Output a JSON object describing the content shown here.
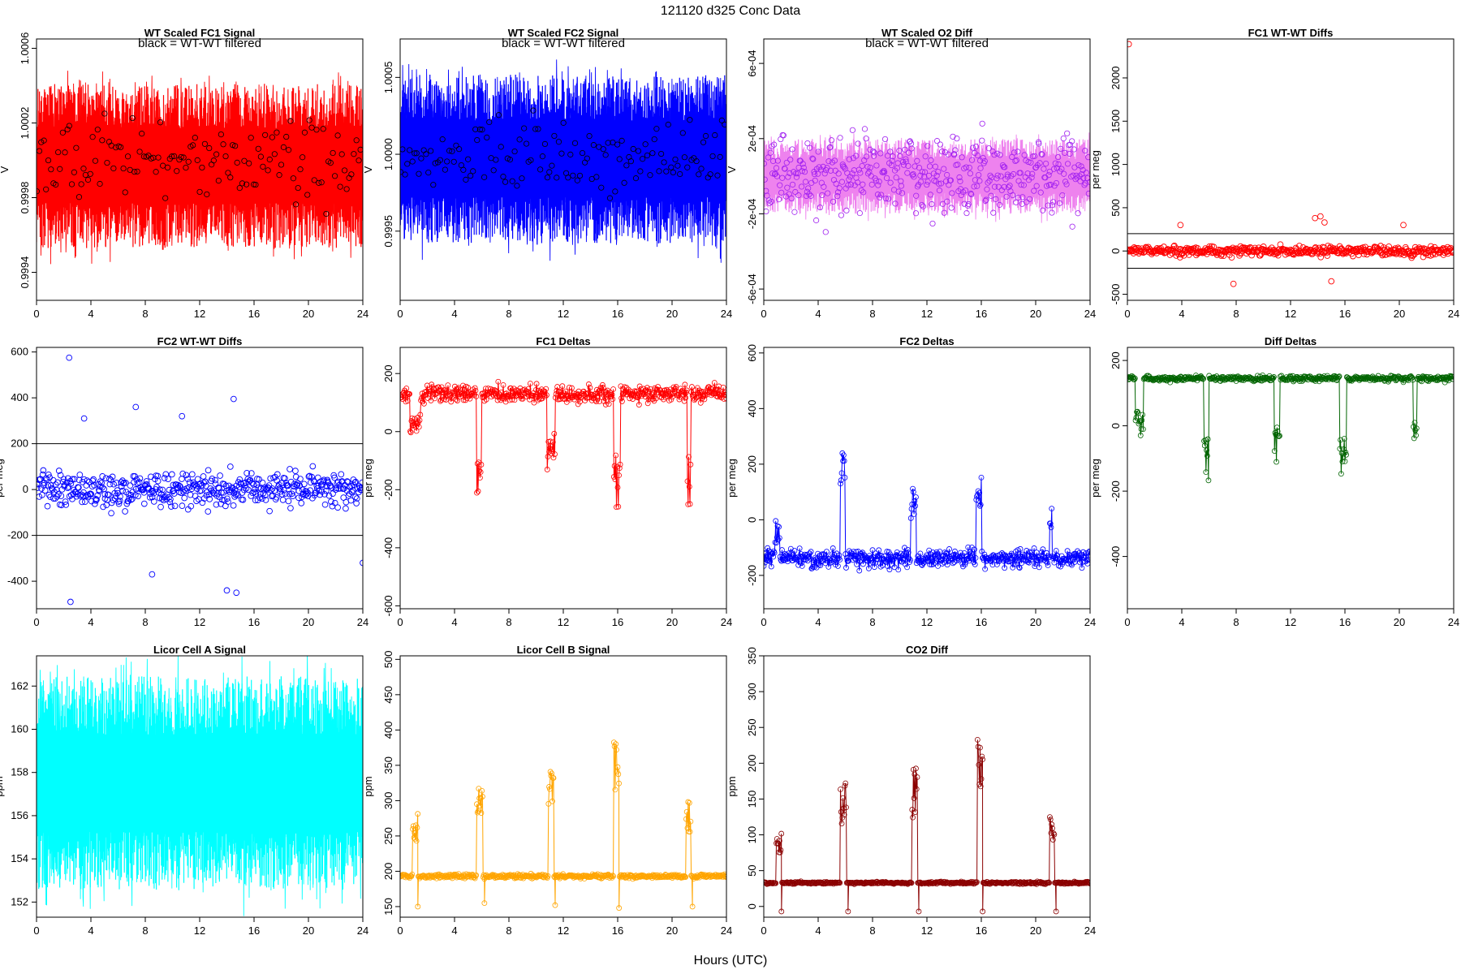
{
  "figure": {
    "title": "121120   d325   Conc Data",
    "xlabel": "Hours (UTC)"
  },
  "colors": {
    "red": "#ff0000",
    "blue": "#0000ff",
    "violet": "#ee82ee",
    "purple": "#a020f0",
    "darkgreen": "#006400",
    "cyan": "#00ffff",
    "orange": "#ffa500",
    "darkred": "#8b0000",
    "filtered": "#000000"
  },
  "chart_data": [
    {
      "id": "p1",
      "type": "line",
      "title": "WT Scaled FC1 Signal",
      "ylabel": "V",
      "note": "black = WT-WT filtered",
      "color": "red",
      "xlim": [
        0,
        24
      ],
      "xticks": [
        0,
        4,
        8,
        12,
        16,
        20,
        24
      ],
      "ylim": [
        0.99925,
        1.00065
      ],
      "yticks": [
        0.9994,
        0.9998,
        1.0002,
        1.0006
      ],
      "ytick_labels": [
        "0.9994",
        "0.9998",
        "1.0002",
        "1.0006"
      ],
      "ytick_rotate": true,
      "series": [
        {
          "kind": "dense",
          "x_start": 0,
          "x_end": 24,
          "points": 900,
          "base": 0.99997,
          "noise": 0.0004,
          "clip": true
        }
      ],
      "overlay": {
        "kind": "circles",
        "color": "filtered",
        "n": 140,
        "base": 1.0,
        "noise": 0.00022
      }
    },
    {
      "id": "p2",
      "type": "line",
      "title": "WT Scaled FC2 Signal",
      "ylabel": "V",
      "note": "black = WT-WT filtered",
      "color": "blue",
      "xlim": [
        0,
        24
      ],
      "xticks": [
        0,
        4,
        8,
        12,
        16,
        20,
        24
      ],
      "ylim": [
        0.99905,
        1.00075
      ],
      "yticks": [
        0.9995,
        1.0,
        1.0005
      ],
      "ytick_labels": [
        "0.9995",
        "1.0000",
        "1.0005"
      ],
      "ytick_rotate": true,
      "series": [
        {
          "kind": "dense",
          "x_start": 0,
          "x_end": 24,
          "points": 900,
          "base": 0.99997,
          "noise": 0.0005,
          "clip": true
        }
      ],
      "overlay": {
        "kind": "circles",
        "color": "filtered",
        "n": 140,
        "base": 1.0,
        "noise": 0.00025
      }
    },
    {
      "id": "p3",
      "type": "line",
      "title": "WT Scaled O2 Diff",
      "ylabel": "V",
      "note": "black = WT-WT filtered",
      "color": "violet",
      "marker_color": "purple",
      "xlim": [
        0,
        24
      ],
      "xticks": [
        0,
        4,
        8,
        12,
        16,
        20,
        24
      ],
      "ylim": [
        -0.00066,
        0.00073
      ],
      "yticks": [
        -0.0006,
        -0.0002,
        0.0002,
        0.0006
      ],
      "ytick_labels": [
        "-6e-04",
        "-2e-04",
        "2e-04",
        "6e-04"
      ],
      "ytick_rotate": true,
      "series": [
        {
          "kind": "dense",
          "x_start": 0,
          "x_end": 24,
          "points": 700,
          "base": 0.0,
          "noise": 0.00018,
          "clip": true
        }
      ],
      "overlay": {
        "kind": "circles",
        "color": "purple",
        "n": 420,
        "base": 0.0,
        "noise": 0.0002
      }
    },
    {
      "id": "p4",
      "type": "scatter",
      "title": "FC1 WT-WT Diffs",
      "ylabel": "per meg",
      "color": "red",
      "xlim": [
        0,
        24
      ],
      "xticks": [
        0,
        4,
        8,
        12,
        16,
        20,
        24
      ],
      "ylim": [
        -570,
        2450
      ],
      "yticks": [
        -500,
        0,
        500,
        1000,
        1500,
        2000
      ],
      "ytick_labels": [
        "-500",
        "0",
        "500",
        "1000",
        "1500",
        "2000"
      ],
      "ytick_rotate": true,
      "hlines": [
        200,
        -200
      ],
      "series": [
        {
          "kind": "scatter",
          "n": 500,
          "base": 0,
          "noise": 55,
          "outliers": [
            [
              0.1,
              2390
            ],
            [
              3.9,
              300
            ],
            [
              13.8,
              380
            ],
            [
              14.2,
              400
            ],
            [
              14.5,
              330
            ],
            [
              15.0,
              -350
            ],
            [
              7.8,
              -380
            ],
            [
              20.3,
              300
            ]
          ]
        }
      ]
    },
    {
      "id": "p5",
      "type": "scatter",
      "title": "FC2 WT-WT Diffs",
      "ylabel": "per meg",
      "color": "blue",
      "xlim": [
        0,
        24
      ],
      "xticks": [
        0,
        4,
        8,
        12,
        16,
        20,
        24
      ],
      "ylim": [
        -520,
        620
      ],
      "yticks": [
        -400,
        -200,
        0,
        200,
        400,
        600
      ],
      "ytick_labels": [
        "-400",
        "-200",
        "0",
        "200",
        "400",
        "600"
      ],
      "ytick_rotate": false,
      "hlines": [
        200,
        -200
      ],
      "series": [
        {
          "kind": "scatter",
          "n": 500,
          "base": 0,
          "noise": 80,
          "outliers": [
            [
              2.4,
              575
            ],
            [
              2.5,
              -490
            ],
            [
              3.5,
              310
            ],
            [
              7.3,
              360
            ],
            [
              8.5,
              -370
            ],
            [
              10.7,
              320
            ],
            [
              14.5,
              395
            ],
            [
              14.0,
              -440
            ],
            [
              14.7,
              -450
            ],
            [
              24.0,
              -320
            ]
          ]
        }
      ]
    },
    {
      "id": "p6",
      "type": "line",
      "title": "FC1 Deltas",
      "ylabel": "per meg",
      "color": "red",
      "xlim": [
        0,
        24
      ],
      "xticks": [
        0,
        4,
        8,
        12,
        16,
        20,
        24
      ],
      "ylim": [
        -610,
        290
      ],
      "yticks": [
        -600,
        -400,
        -200,
        0,
        200
      ],
      "ytick_labels": [
        "-600",
        "-400",
        "-200",
        "0",
        "200"
      ],
      "ytick_rotate": true,
      "series": [
        {
          "kind": "events",
          "n": 520,
          "base": 130,
          "noise": 30,
          "events": [
            [
              0.7,
              1.5,
              -130
            ],
            [
              5.6,
              6.0,
              -400
            ],
            [
              10.8,
              11.4,
              -280
            ],
            [
              15.7,
              16.2,
              -420
            ],
            [
              21.1,
              21.4,
              -380
            ]
          ]
        }
      ]
    },
    {
      "id": "p7",
      "type": "line",
      "title": "FC2 Deltas",
      "ylabel": "per meg",
      "color": "blue",
      "xlim": [
        0,
        24
      ],
      "xticks": [
        0,
        4,
        8,
        12,
        16,
        20,
        24
      ],
      "ylim": [
        -320,
        620
      ],
      "yticks": [
        -200,
        0,
        200,
        400,
        600
      ],
      "ytick_labels": [
        "-200",
        "0",
        "200",
        "400",
        "600"
      ],
      "ytick_rotate": true,
      "series": [
        {
          "kind": "events",
          "n": 520,
          "base": -140,
          "noise": 35,
          "events": [
            [
              0.8,
              1.2,
              120
            ],
            [
              5.6,
              6.0,
              380
            ],
            [
              10.8,
              11.2,
              260
            ],
            [
              15.6,
              16.0,
              300
            ],
            [
              21.0,
              21.2,
              200
            ]
          ]
        }
      ]
    },
    {
      "id": "p8",
      "type": "line",
      "title": "Diff Deltas",
      "ylabel": "per meg",
      "color": "darkgreen",
      "xlim": [
        0,
        24
      ],
      "xticks": [
        0,
        4,
        8,
        12,
        16,
        20,
        24
      ],
      "ylim": [
        -560,
        240
      ],
      "yticks": [
        -400,
        -200,
        0,
        200
      ],
      "ytick_labels": [
        "-400",
        "-200",
        "0",
        "200"
      ],
      "ytick_rotate": true,
      "series": [
        {
          "kind": "events",
          "n": 520,
          "base": 145,
          "noise": 8,
          "events": [
            [
              0.6,
              1.2,
              -180
            ],
            [
              5.6,
              6.0,
              -320
            ],
            [
              10.8,
              11.2,
              -260
            ],
            [
              15.6,
              16.1,
              -300
            ],
            [
              21.0,
              21.3,
              -200
            ]
          ]
        }
      ]
    },
    {
      "id": "p9",
      "type": "line",
      "title": "Licor Cell A Signal",
      "ylabel": "ppm",
      "color": "cyan",
      "xlim": [
        0,
        24
      ],
      "xticks": [
        0,
        4,
        8,
        12,
        16,
        20,
        24
      ],
      "ylim": [
        151.3,
        163.4
      ],
      "yticks": [
        152,
        154,
        156,
        158,
        160,
        162
      ],
      "ytick_labels": [
        "152",
        "154",
        "156",
        "158",
        "160",
        "162"
      ],
      "ytick_rotate": false,
      "series": [
        {
          "kind": "dense",
          "x_start": 0,
          "x_end": 24,
          "points": 900,
          "base": 157.5,
          "noise": 4.5,
          "clip": true
        }
      ]
    },
    {
      "id": "p10",
      "type": "line",
      "title": "Licor Cell B Signal",
      "ylabel": "ppm",
      "color": "orange",
      "xlim": [
        0,
        24
      ],
      "xticks": [
        0,
        4,
        8,
        12,
        16,
        20,
        24
      ],
      "ylim": [
        135,
        505
      ],
      "yticks": [
        150,
        200,
        250,
        300,
        350,
        400,
        450,
        500
      ],
      "ytick_labels": [
        "150",
        "200",
        "250",
        "300",
        "350",
        "400",
        "450",
        "500"
      ],
      "ytick_rotate": true,
      "series": [
        {
          "kind": "events",
          "n": 520,
          "base": 193,
          "noise": 3,
          "events": [
            [
              0.9,
              1.3,
              90
            ],
            [
              5.6,
              6.1,
              160
            ],
            [
              10.9,
              11.3,
              160
            ],
            [
              15.7,
              16.1,
              200
            ],
            [
              21.0,
              21.4,
              110
            ]
          ],
          "dips": [
            [
              1.3,
              150
            ],
            [
              6.2,
              155
            ],
            [
              11.4,
              152
            ],
            [
              16.1,
              148
            ],
            [
              21.5,
              150
            ]
          ]
        }
      ]
    },
    {
      "id": "p11",
      "type": "line",
      "title": "CO2 Diff",
      "ylabel": "ppm",
      "color": "darkred",
      "xlim": [
        0,
        24
      ],
      "xticks": [
        0,
        4,
        8,
        12,
        16,
        20,
        24
      ],
      "ylim": [
        -15,
        350
      ],
      "yticks": [
        0,
        50,
        100,
        150,
        200,
        250,
        300,
        350
      ],
      "ytick_labels": [
        "0",
        "50",
        "100",
        "150",
        "200",
        "250",
        "300",
        "350"
      ],
      "ytick_rotate": true,
      "series": [
        {
          "kind": "events",
          "n": 520,
          "base": 33,
          "noise": 1.5,
          "events": [
            [
              0.9,
              1.3,
              70
            ],
            [
              5.6,
              6.1,
              150
            ],
            [
              10.9,
              11.3,
              160
            ],
            [
              15.7,
              16.1,
              200
            ],
            [
              21.0,
              21.4,
              100
            ]
          ],
          "dips": [
            [
              1.3,
              -7
            ],
            [
              6.2,
              -7
            ],
            [
              11.4,
              -7
            ],
            [
              16.1,
              -7
            ],
            [
              21.5,
              -7
            ]
          ]
        }
      ]
    }
  ]
}
